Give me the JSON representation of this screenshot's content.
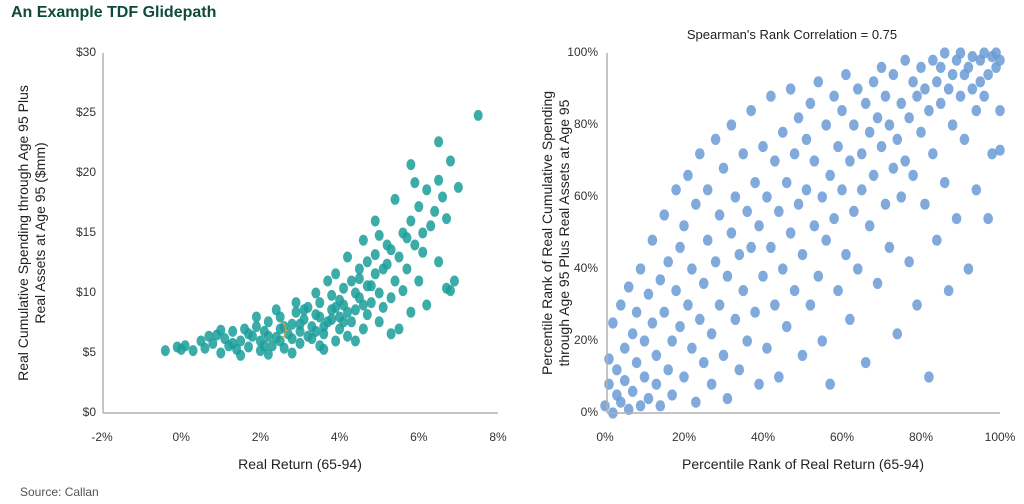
{
  "title": "An Example TDF Glidepath",
  "source": "Source: Callan",
  "chart_data": [
    {
      "type": "scatter",
      "title": "",
      "xlabel": "Real Return (65-94)",
      "ylabel": [
        "Real Cumulative Spending through Age 95 Plus",
        "Real Assets at Age 95 ($mm)"
      ],
      "xlim": [
        -2,
        8
      ],
      "ylim": [
        0,
        30
      ],
      "xticks": [
        "-2%",
        "0%",
        "2%",
        "4%",
        "6%",
        "8%"
      ],
      "yticks": [
        "$0",
        "$5",
        "$10",
        "$15",
        "$20",
        "$25",
        "$30"
      ],
      "grid": false,
      "color": "#1a9e9a",
      "annotation_color": "#e89a2c",
      "annotation_point": [
        2.6,
        6.9
      ],
      "points": [
        [
          -0.4,
          5.2
        ],
        [
          -0.1,
          5.5
        ],
        [
          0,
          5.3
        ],
        [
          0.1,
          5.6
        ],
        [
          0.3,
          5.2
        ],
        [
          0.5,
          6.0
        ],
        [
          0.6,
          5.4
        ],
        [
          0.8,
          5.8
        ],
        [
          0.9,
          6.5
        ],
        [
          1.0,
          5.0
        ],
        [
          1.1,
          6.2
        ],
        [
          1.2,
          5.6
        ],
        [
          1.3,
          6.8
        ],
        [
          1.4,
          5.3
        ],
        [
          1.5,
          6.0
        ],
        [
          1.6,
          7.0
        ],
        [
          1.7,
          5.5
        ],
        [
          1.8,
          6.4
        ],
        [
          1.9,
          7.2
        ],
        [
          2.0,
          5.2
        ],
        [
          2.0,
          6.0
        ],
        [
          2.1,
          6.8
        ],
        [
          2.2,
          7.6
        ],
        [
          2.3,
          5.6
        ],
        [
          2.4,
          6.3
        ],
        [
          2.5,
          7.0
        ],
        [
          2.5,
          8.0
        ],
        [
          2.6,
          5.4
        ],
        [
          2.7,
          6.6
        ],
        [
          2.8,
          7.4
        ],
        [
          2.9,
          8.4
        ],
        [
          3.0,
          5.8
        ],
        [
          3.0,
          6.8
        ],
        [
          3.1,
          7.8
        ],
        [
          3.2,
          8.8
        ],
        [
          3.3,
          6.2
        ],
        [
          3.3,
          7.2
        ],
        [
          3.4,
          8.2
        ],
        [
          3.5,
          9.2
        ],
        [
          3.5,
          5.6
        ],
        [
          3.6,
          6.6
        ],
        [
          3.7,
          7.6
        ],
        [
          3.8,
          8.6
        ],
        [
          3.8,
          9.8
        ],
        [
          3.9,
          6.0
        ],
        [
          4.0,
          7.0
        ],
        [
          4.0,
          8.0
        ],
        [
          4.1,
          9.0
        ],
        [
          4.1,
          10.4
        ],
        [
          4.2,
          6.4
        ],
        [
          4.3,
          7.6
        ],
        [
          4.3,
          11.0
        ],
        [
          4.4,
          8.6
        ],
        [
          4.5,
          9.6
        ],
        [
          4.5,
          12.0
        ],
        [
          4.6,
          7.0
        ],
        [
          4.7,
          8.2
        ],
        [
          4.7,
          10.6
        ],
        [
          4.8,
          9.2
        ],
        [
          4.9,
          11.6
        ],
        [
          4.9,
          13.2
        ],
        [
          5.0,
          7.6
        ],
        [
          5.0,
          10.0
        ],
        [
          5.1,
          8.8
        ],
        [
          5.2,
          12.4
        ],
        [
          5.2,
          14.0
        ],
        [
          5.3,
          9.6
        ],
        [
          5.4,
          11.0
        ],
        [
          5.5,
          7.0
        ],
        [
          5.5,
          13.0
        ],
        [
          5.6,
          10.2
        ],
        [
          5.6,
          15.0
        ],
        [
          5.7,
          12.0
        ],
        [
          5.8,
          8.4
        ],
        [
          5.8,
          16.0
        ],
        [
          5.9,
          14.0
        ],
        [
          6.0,
          11.0
        ],
        [
          6.0,
          17.2
        ],
        [
          6.1,
          13.4
        ],
        [
          6.2,
          9.0
        ],
        [
          6.2,
          18.6
        ],
        [
          6.3,
          15.6
        ],
        [
          6.4,
          16.8
        ],
        [
          6.5,
          12.6
        ],
        [
          6.5,
          22.6
        ],
        [
          6.5,
          19.4
        ],
        [
          6.6,
          18.0
        ],
        [
          6.7,
          10.4
        ],
        [
          6.7,
          16.2
        ],
        [
          6.8,
          21.0
        ],
        [
          6.9,
          11.0
        ],
        [
          7.0,
          18.8
        ],
        [
          7.5,
          24.8
        ],
        [
          1.5,
          4.8
        ],
        [
          2.2,
          4.9
        ],
        [
          2.8,
          5.0
        ],
        [
          3.6,
          5.3
        ],
        [
          4.4,
          6.0
        ],
        [
          5.3,
          6.6
        ],
        [
          6.8,
          10.2
        ],
        [
          5.8,
          20.7
        ],
        [
          4.9,
          16.0
        ],
        [
          4.2,
          13.0
        ],
        [
          3.9,
          11.6
        ],
        [
          3.4,
          10.0
        ],
        [
          2.9,
          9.2
        ],
        [
          2.4,
          8.6
        ],
        [
          1.9,
          8.0
        ],
        [
          3.7,
          11.0
        ],
        [
          4.6,
          14.4
        ],
        [
          5.4,
          17.8
        ],
        [
          5.9,
          19.2
        ],
        [
          2.2,
          6.4
        ],
        [
          2.6,
          7.2
        ],
        [
          3.0,
          7.4
        ],
        [
          3.2,
          6.4
        ],
        [
          3.6,
          7.2
        ],
        [
          3.8,
          7.8
        ],
        [
          4.0,
          9.4
        ],
        [
          4.2,
          8.4
        ],
        [
          4.4,
          10.0
        ],
        [
          4.6,
          9.0
        ],
        [
          4.8,
          10.6
        ],
        [
          3.4,
          6.8
        ],
        [
          2.8,
          6.2
        ],
        [
          3.1,
          8.6
        ],
        [
          3.9,
          8.8
        ],
        [
          4.5,
          11.2
        ],
        [
          5.1,
          12.0
        ],
        [
          5.3,
          13.6
        ],
        [
          5.7,
          14.6
        ],
        [
          6.1,
          15.0
        ],
        [
          1.3,
          5.8
        ],
        [
          1.7,
          6.6
        ],
        [
          2.1,
          5.6
        ],
        [
          2.5,
          6.0
        ],
        [
          3.5,
          8.0
        ],
        [
          4.1,
          7.6
        ],
        [
          4.7,
          12.6
        ],
        [
          5.0,
          14.8
        ],
        [
          0.7,
          6.4
        ],
        [
          1.0,
          6.9
        ]
      ]
    },
    {
      "type": "scatter",
      "title": "Spearman's Rank Correlation = 0.75",
      "xlabel": "Percentile Rank of Real Return (65-94)",
      "ylabel": [
        "Percentile Rank of Real Cumulative Spending",
        "through Age 95 Plus Real Assets at Age 95"
      ],
      "xlim": [
        0,
        100
      ],
      "ylim": [
        0,
        100
      ],
      "xticks": [
        "0%",
        "20%",
        "40%",
        "60%",
        "80%",
        "100%"
      ],
      "yticks": [
        "0%",
        "20%",
        "40%",
        "60%",
        "80%",
        "100%"
      ],
      "grid": false,
      "color": "#6a9ad6",
      "points": [
        [
          0,
          2
        ],
        [
          1,
          8
        ],
        [
          1,
          15
        ],
        [
          2,
          0
        ],
        [
          2,
          25
        ],
        [
          3,
          5
        ],
        [
          3,
          12
        ],
        [
          4,
          30
        ],
        [
          4,
          3
        ],
        [
          5,
          18
        ],
        [
          5,
          9
        ],
        [
          6,
          1
        ],
        [
          6,
          35
        ],
        [
          7,
          22
        ],
        [
          7,
          6
        ],
        [
          8,
          14
        ],
        [
          8,
          28
        ],
        [
          9,
          2
        ],
        [
          9,
          40
        ],
        [
          10,
          10
        ],
        [
          10,
          20
        ],
        [
          11,
          33
        ],
        [
          11,
          4
        ],
        [
          12,
          25
        ],
        [
          12,
          48
        ],
        [
          13,
          16
        ],
        [
          13,
          8
        ],
        [
          14,
          37
        ],
        [
          14,
          2
        ],
        [
          15,
          28
        ],
        [
          15,
          55
        ],
        [
          16,
          12
        ],
        [
          16,
          42
        ],
        [
          17,
          20
        ],
        [
          17,
          5
        ],
        [
          18,
          34
        ],
        [
          18,
          62
        ],
        [
          19,
          24
        ],
        [
          19,
          46
        ],
        [
          20,
          10
        ],
        [
          20,
          52
        ],
        [
          21,
          30
        ],
        [
          21,
          66
        ],
        [
          22,
          18
        ],
        [
          22,
          40
        ],
        [
          23,
          3
        ],
        [
          23,
          58
        ],
        [
          24,
          26
        ],
        [
          24,
          72
        ],
        [
          25,
          36
        ],
        [
          25,
          14
        ],
        [
          26,
          48
        ],
        [
          26,
          62
        ],
        [
          27,
          22
        ],
        [
          27,
          8
        ],
        [
          28,
          42
        ],
        [
          28,
          76
        ],
        [
          29,
          30
        ],
        [
          29,
          55
        ],
        [
          30,
          16
        ],
        [
          30,
          68
        ],
        [
          31,
          38
        ],
        [
          31,
          4
        ],
        [
          32,
          50
        ],
        [
          32,
          80
        ],
        [
          33,
          26
        ],
        [
          33,
          60
        ],
        [
          34,
          44
        ],
        [
          34,
          12
        ],
        [
          35,
          72
        ],
        [
          35,
          34
        ],
        [
          36,
          56
        ],
        [
          36,
          20
        ],
        [
          37,
          84
        ],
        [
          37,
          46
        ],
        [
          38,
          64
        ],
        [
          38,
          28
        ],
        [
          39,
          8
        ],
        [
          39,
          52
        ],
        [
          40,
          74
        ],
        [
          40,
          38
        ],
        [
          41,
          60
        ],
        [
          41,
          18
        ],
        [
          42,
          88
        ],
        [
          42,
          46
        ],
        [
          43,
          70
        ],
        [
          43,
          30
        ],
        [
          44,
          56
        ],
        [
          44,
          10
        ],
        [
          45,
          78
        ],
        [
          45,
          40
        ],
        [
          46,
          64
        ],
        [
          46,
          24
        ],
        [
          47,
          90
        ],
        [
          47,
          50
        ],
        [
          48,
          72
        ],
        [
          48,
          34
        ],
        [
          49,
          82
        ],
        [
          49,
          58
        ],
        [
          50,
          16
        ],
        [
          50,
          44
        ],
        [
          51,
          76
        ],
        [
          51,
          62
        ],
        [
          52,
          30
        ],
        [
          52,
          86
        ],
        [
          53,
          52
        ],
        [
          53,
          70
        ],
        [
          54,
          38
        ],
        [
          54,
          92
        ],
        [
          55,
          60
        ],
        [
          55,
          20
        ],
        [
          56,
          80
        ],
        [
          56,
          48
        ],
        [
          57,
          66
        ],
        [
          57,
          8
        ],
        [
          58,
          88
        ],
        [
          58,
          54
        ],
        [
          59,
          74
        ],
        [
          59,
          34
        ],
        [
          60,
          84
        ],
        [
          60,
          62
        ],
        [
          61,
          44
        ],
        [
          61,
          94
        ],
        [
          62,
          70
        ],
        [
          62,
          26
        ],
        [
          63,
          80
        ],
        [
          63,
          56
        ],
        [
          64,
          90
        ],
        [
          64,
          40
        ],
        [
          65,
          72
        ],
        [
          65,
          62
        ],
        [
          66,
          86
        ],
        [
          66,
          14
        ],
        [
          67,
          78
        ],
        [
          67,
          52
        ],
        [
          68,
          92
        ],
        [
          68,
          66
        ],
        [
          69,
          36
        ],
        [
          69,
          82
        ],
        [
          70,
          74
        ],
        [
          70,
          96
        ],
        [
          71,
          58
        ],
        [
          71,
          88
        ],
        [
          72,
          46
        ],
        [
          72,
          80
        ],
        [
          73,
          68
        ],
        [
          73,
          94
        ],
        [
          74,
          22
        ],
        [
          74,
          76
        ],
        [
          75,
          86
        ],
        [
          75,
          60
        ],
        [
          76,
          98
        ],
        [
          76,
          70
        ],
        [
          77,
          82
        ],
        [
          77,
          42
        ],
        [
          78,
          92
        ],
        [
          78,
          66
        ],
        [
          79,
          88
        ],
        [
          79,
          30
        ],
        [
          80,
          96
        ],
        [
          80,
          78
        ],
        [
          81,
          58
        ],
        [
          81,
          90
        ],
        [
          82,
          84
        ],
        [
          82,
          10
        ],
        [
          83,
          98
        ],
        [
          83,
          72
        ],
        [
          84,
          92
        ],
        [
          84,
          48
        ],
        [
          85,
          86
        ],
        [
          85,
          96
        ],
        [
          86,
          64
        ],
        [
          86,
          100
        ],
        [
          87,
          90
        ],
        [
          87,
          34
        ],
        [
          88,
          94
        ],
        [
          88,
          80
        ],
        [
          89,
          98
        ],
        [
          89,
          54
        ],
        [
          90,
          88
        ],
        [
          90,
          100
        ],
        [
          91,
          76
        ],
        [
          91,
          94
        ],
        [
          92,
          96
        ],
        [
          92,
          40
        ],
        [
          93,
          90
        ],
        [
          93,
          99
        ],
        [
          94,
          84
        ],
        [
          94,
          62
        ],
        [
          95,
          98
        ],
        [
          95,
          92
        ],
        [
          96,
          100
        ],
        [
          96,
          88
        ],
        [
          97,
          94
        ],
        [
          97,
          54
        ],
        [
          98,
          99
        ],
        [
          98,
          72
        ],
        [
          99,
          100
        ],
        [
          99,
          96
        ],
        [
          100,
          98
        ],
        [
          100,
          84
        ],
        [
          100,
          73
        ]
      ]
    }
  ]
}
